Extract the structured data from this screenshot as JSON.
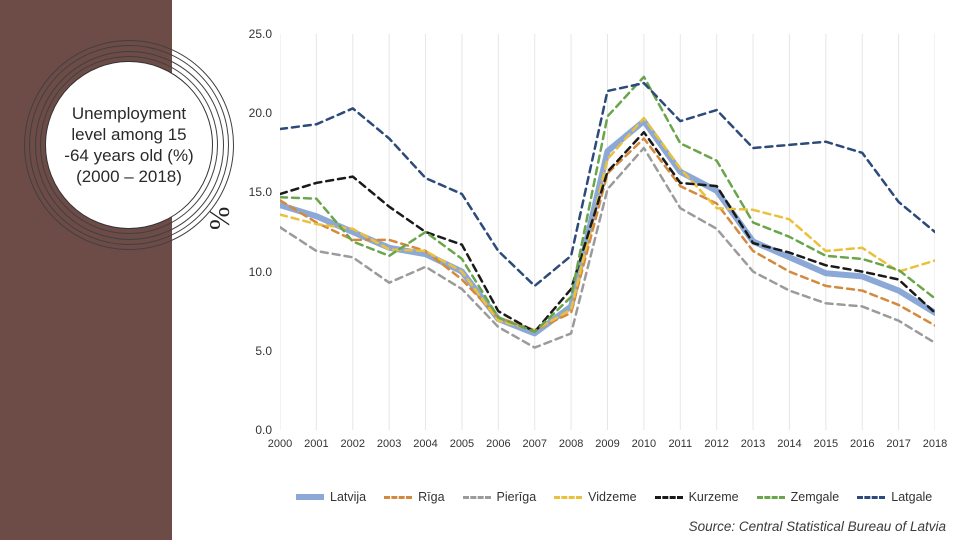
{
  "title_block": {
    "text": "Unemployment level among 15 -64 years old (%) (2000 – 2018)"
  },
  "y_axis": {
    "label": "%",
    "ticks": [
      0.0,
      5.0,
      10.0,
      15.0,
      20.0,
      25.0
    ],
    "lim": [
      0,
      25
    ],
    "fontsize": 12
  },
  "x_axis": {
    "categories": [
      2000,
      2001,
      2002,
      2003,
      2004,
      2005,
      2006,
      2007,
      2008,
      2009,
      2010,
      2011,
      2012,
      2013,
      2014,
      2015,
      2016,
      2017,
      2018
    ],
    "fontsize": 11
  },
  "chart": {
    "type": "line",
    "background_color": "#ffffff",
    "grid_color": "#e6e6e6",
    "grid_axis": "x",
    "series": [
      {
        "name": "Latvija",
        "color": "#8ba8d6",
        "style": "solid",
        "width": 6,
        "values": [
          14.2,
          13.5,
          12.5,
          11.5,
          11.1,
          10.0,
          7.0,
          6.1,
          7.8,
          17.6,
          19.5,
          16.3,
          15.1,
          11.9,
          10.9,
          9.9,
          9.7,
          8.8,
          7.4
        ]
      },
      {
        "name": "Rīga",
        "color": "#d48a3e",
        "style": "dash",
        "width": 2.5,
        "values": [
          14.5,
          13.1,
          12.0,
          12.0,
          11.3,
          9.5,
          7.1,
          6.3,
          7.4,
          16.2,
          18.4,
          15.4,
          14.3,
          11.3,
          10.0,
          9.1,
          8.8,
          7.9,
          6.6
        ]
      },
      {
        "name": "Pierīga",
        "color": "#9b9b9b",
        "style": "dash",
        "width": 2.5,
        "values": [
          12.8,
          11.3,
          10.9,
          9.3,
          10.3,
          8.9,
          6.5,
          5.2,
          6.1,
          15.2,
          17.8,
          14.0,
          12.7,
          10.0,
          8.8,
          8.0,
          7.8,
          6.9,
          5.5
        ]
      },
      {
        "name": "Vidzeme",
        "color": "#e9c13c",
        "style": "dash",
        "width": 2.5,
        "values": [
          13.6,
          13.0,
          12.7,
          11.4,
          11.3,
          10.0,
          6.9,
          6.3,
          7.6,
          17.1,
          19.7,
          16.5,
          14.0,
          13.9,
          13.3,
          11.3,
          11.5,
          10.0,
          10.7
        ]
      },
      {
        "name": "Kurzeme",
        "color": "#1a1a1a",
        "style": "dash",
        "width": 2.5,
        "values": [
          14.9,
          15.6,
          16.0,
          14.1,
          12.5,
          11.7,
          7.5,
          6.2,
          8.9,
          16.3,
          18.8,
          15.6,
          15.4,
          11.8,
          11.2,
          10.4,
          10.0,
          9.5,
          7.4
        ]
      },
      {
        "name": "Zemgale",
        "color": "#6ba54b",
        "style": "dash",
        "width": 2.5,
        "values": [
          14.7,
          14.6,
          11.9,
          11.0,
          12.5,
          10.8,
          7.1,
          6.2,
          8.4,
          19.8,
          22.3,
          18.1,
          17.0,
          13.1,
          12.2,
          11.0,
          10.8,
          10.1,
          8.3
        ]
      },
      {
        "name": "Latgale",
        "color": "#2c4a7a",
        "style": "dash",
        "width": 2.5,
        "values": [
          19.0,
          19.3,
          20.3,
          18.4,
          15.9,
          14.9,
          11.3,
          9.1,
          11.0,
          21.4,
          21.9,
          19.5,
          20.2,
          17.8,
          18.0,
          18.2,
          17.5,
          14.4,
          12.5
        ]
      }
    ]
  },
  "legend": {
    "position": "bottom",
    "fontsize": 12.5
  },
  "source_line": "Source: Central Statistical Bureau of Latvia",
  "colors": {
    "stripe": "#6d4b47",
    "medallion_ring": "#404040",
    "text": "#333333"
  }
}
